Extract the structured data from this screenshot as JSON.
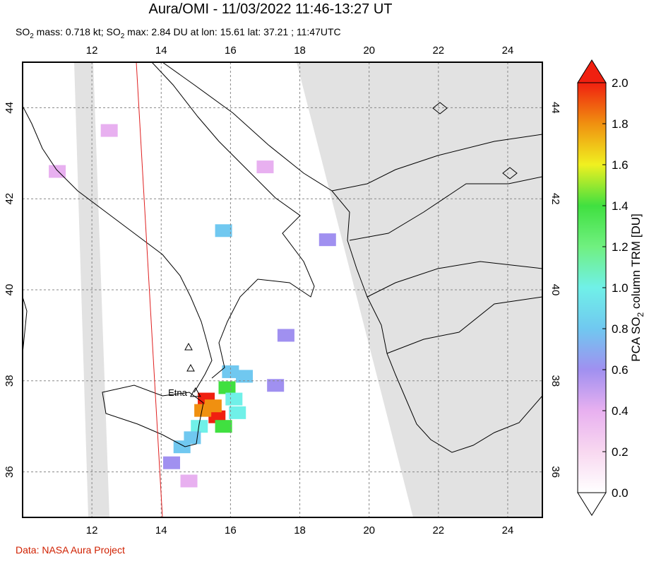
{
  "title": "Aura/OMI - 11/03/2022 11:46-13:27 UT",
  "subtitle_parts": [
    "SO",
    "2",
    " mass: 0.718 kt; SO",
    "2",
    " max: 2.84 DU at lon: 15.61 lat: 37.21 ; 11:47UTC"
  ],
  "map": {
    "xlim": [
      10,
      25
    ],
    "ylim": [
      35,
      45
    ],
    "xticks": [
      12,
      14,
      16,
      18,
      20,
      22,
      24
    ],
    "yticks": [
      36,
      38,
      40,
      42,
      44
    ],
    "grid": true,
    "volcano_label": "Etna",
    "volcano": {
      "lon": 14.99,
      "lat": 37.75
    },
    "so2_pixels": [
      {
        "lon": 15.3,
        "lat": 37.6,
        "value": 2.0
      },
      {
        "lon": 15.61,
        "lat": 37.21,
        "value": 2.84
      },
      {
        "lon": 15.5,
        "lat": 37.45,
        "value": 1.8
      },
      {
        "lon": 15.2,
        "lat": 37.35,
        "value": 1.7
      },
      {
        "lon": 15.9,
        "lat": 37.85,
        "value": 1.4
      },
      {
        "lon": 16.1,
        "lat": 37.6,
        "value": 1.0
      },
      {
        "lon": 16.2,
        "lat": 37.3,
        "value": 0.9
      },
      {
        "lon": 15.1,
        "lat": 37.0,
        "value": 0.9
      },
      {
        "lon": 15.8,
        "lat": 37.0,
        "value": 1.3
      },
      {
        "lon": 14.9,
        "lat": 36.75,
        "value": 0.8
      },
      {
        "lon": 14.6,
        "lat": 36.55,
        "value": 0.7
      },
      {
        "lon": 14.3,
        "lat": 36.2,
        "value": 0.6
      },
      {
        "lon": 16.4,
        "lat": 38.1,
        "value": 0.7
      },
      {
        "lon": 16.0,
        "lat": 38.2,
        "value": 0.8
      },
      {
        "lon": 17.3,
        "lat": 37.9,
        "value": 0.6
      },
      {
        "lon": 17.6,
        "lat": 39.0,
        "value": 0.6
      },
      {
        "lon": 15.8,
        "lat": 41.3,
        "value": 0.8
      },
      {
        "lon": 18.8,
        "lat": 41.1,
        "value": 0.6
      },
      {
        "lon": 11.0,
        "lat": 42.6,
        "value": 0.4
      },
      {
        "lon": 12.5,
        "lat": 43.5,
        "value": 0.3
      },
      {
        "lon": 17.0,
        "lat": 42.7,
        "value": 0.4
      },
      {
        "lon": 14.8,
        "lat": 35.8,
        "value": 0.3
      }
    ]
  },
  "colorbar": {
    "label_parts": [
      "PCA SO",
      "2",
      " column TRM [DU]"
    ],
    "lim": [
      0,
      2
    ],
    "colors": [
      "#ffffff",
      "#f8d8f0",
      "#e8b0f0",
      "#a090f0",
      "#70c8f0",
      "#70f0e8",
      "#70f080",
      "#40e040",
      "#f0f020",
      "#f09010",
      "#f02010"
    ],
    "ticks": [
      {
        "value": 0,
        "label": "0.0"
      },
      {
        "value": 0.2,
        "label": "0.2"
      },
      {
        "value": 0.4,
        "label": "0.4"
      },
      {
        "value": 0.6,
        "label": "0.6"
      },
      {
        "value": 0.8,
        "label": "0.8"
      },
      {
        "value": 1.0,
        "label": "1.0"
      },
      {
        "value": 1.2,
        "label": "1.2"
      },
      {
        "value": 1.4,
        "label": "1.4"
      },
      {
        "value": 1.6,
        "label": "1.6"
      },
      {
        "value": 1.8,
        "label": "1.8"
      },
      {
        "value": 2.0,
        "label": "2.0"
      }
    ]
  },
  "footer": "Data: NASA Aura Project"
}
